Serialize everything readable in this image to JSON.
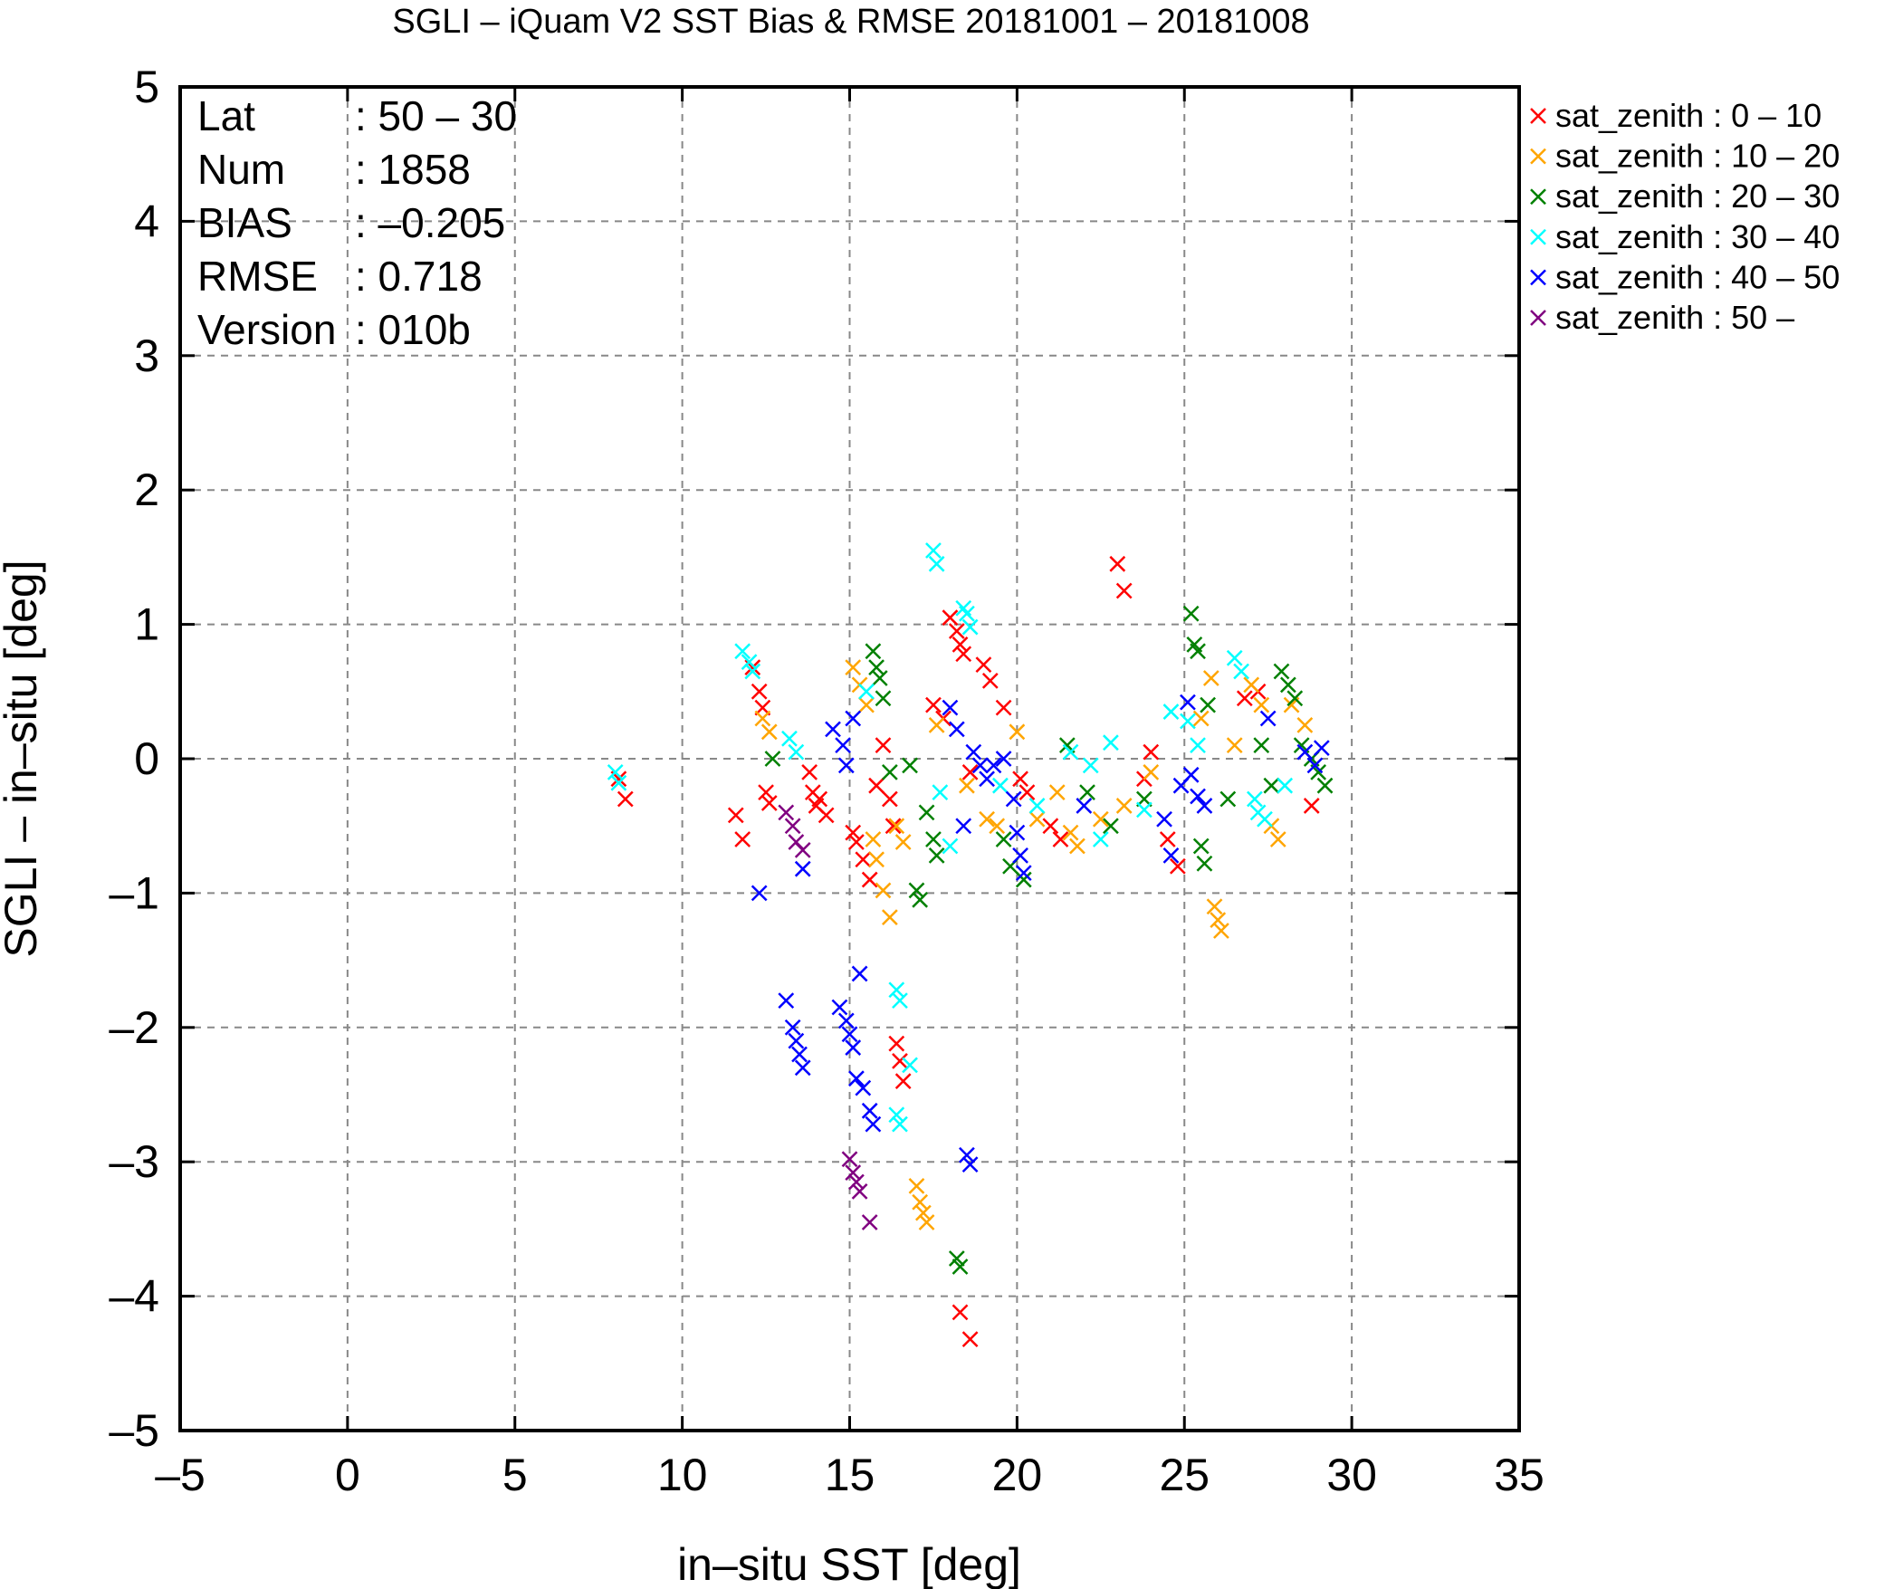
{
  "chart_data": {
    "type": "scatter",
    "title": "SGLI – iQuam V2 SST Bias & RMSE 20181001 – 20181008",
    "xlabel": "in–situ SST [deg]",
    "ylabel": "SGLI – in–situ [deg]",
    "xlim": [
      -5,
      35
    ],
    "ylim": [
      -5,
      5
    ],
    "xticks": [
      -5,
      0,
      5,
      10,
      15,
      20,
      25,
      30,
      35
    ],
    "yticks": [
      -5,
      -4,
      -3,
      -2,
      -1,
      0,
      1,
      2,
      3,
      4,
      5
    ],
    "xtick_labels": [
      "–5",
      "0",
      "5",
      "10",
      "15",
      "20",
      "25",
      "30",
      "35"
    ],
    "ytick_labels": [
      "–5",
      "–4",
      "–3",
      "–2",
      "–1",
      "0",
      "1",
      "2",
      "3",
      "4",
      "5"
    ],
    "grid": true,
    "legend_position": "outside top-right",
    "marker": "×",
    "stats": [
      {
        "key": "Lat",
        "value": ": 50 – 30"
      },
      {
        "key": "Num",
        "value": ": 1858"
      },
      {
        "key": "BIAS",
        "value": ": –0.205"
      },
      {
        "key": "RMSE",
        "value": ": 0.718"
      },
      {
        "key": "Version",
        "value": ": 010b"
      }
    ],
    "series": [
      {
        "name": "sat_zenith :  0 – 10",
        "color": "#ff0000",
        "points": [
          [
            8.1,
            -0.15
          ],
          [
            8.3,
            -0.3
          ],
          [
            11.6,
            -0.42
          ],
          [
            11.8,
            -0.6
          ],
          [
            12.1,
            0.68
          ],
          [
            12.3,
            0.5
          ],
          [
            12.4,
            0.38
          ],
          [
            12.5,
            -0.25
          ],
          [
            12.6,
            -0.33
          ],
          [
            13.8,
            -0.1
          ],
          [
            13.9,
            -0.25
          ],
          [
            14.0,
            -0.35
          ],
          [
            14.1,
            -0.3
          ],
          [
            14.3,
            -0.42
          ],
          [
            15.1,
            -0.55
          ],
          [
            15.2,
            -0.62
          ],
          [
            15.4,
            -0.75
          ],
          [
            15.6,
            -0.9
          ],
          [
            15.8,
            -0.2
          ],
          [
            16.0,
            0.1
          ],
          [
            16.2,
            -0.3
          ],
          [
            16.3,
            -0.5
          ],
          [
            16.4,
            -2.12
          ],
          [
            16.5,
            -2.25
          ],
          [
            16.6,
            -2.4
          ],
          [
            17.5,
            0.4
          ],
          [
            17.8,
            0.3
          ],
          [
            18.0,
            1.05
          ],
          [
            18.2,
            0.95
          ],
          [
            18.3,
            0.85
          ],
          [
            18.4,
            0.78
          ],
          [
            18.6,
            -0.1
          ],
          [
            19.0,
            0.7
          ],
          [
            19.2,
            0.58
          ],
          [
            19.6,
            0.38
          ],
          [
            20.1,
            -0.15
          ],
          [
            20.3,
            -0.25
          ],
          [
            21.0,
            -0.5
          ],
          [
            21.3,
            -0.6
          ],
          [
            23.0,
            1.45
          ],
          [
            23.2,
            1.25
          ],
          [
            23.8,
            -0.15
          ],
          [
            24.0,
            0.05
          ],
          [
            24.5,
            -0.6
          ],
          [
            24.8,
            -0.8
          ],
          [
            26.8,
            0.45
          ],
          [
            27.2,
            0.5
          ],
          [
            28.8,
            -0.35
          ],
          [
            18.3,
            -4.12
          ],
          [
            18.6,
            -4.32
          ]
        ]
      },
      {
        "name": "sat_zenith : 10 – 20",
        "color": "#ffa500",
        "points": [
          [
            12.4,
            0.3
          ],
          [
            12.6,
            0.2
          ],
          [
            15.1,
            0.68
          ],
          [
            15.3,
            0.55
          ],
          [
            15.5,
            0.4
          ],
          [
            15.7,
            -0.6
          ],
          [
            15.8,
            -0.75
          ],
          [
            16.0,
            -0.98
          ],
          [
            16.2,
            -1.18
          ],
          [
            16.4,
            -0.5
          ],
          [
            16.6,
            -0.62
          ],
          [
            17.0,
            -3.18
          ],
          [
            17.1,
            -3.3
          ],
          [
            17.2,
            -3.38
          ],
          [
            17.3,
            -3.45
          ],
          [
            17.6,
            0.25
          ],
          [
            18.5,
            -0.2
          ],
          [
            19.1,
            -0.45
          ],
          [
            19.4,
            -0.5
          ],
          [
            20.0,
            0.2
          ],
          [
            20.6,
            -0.45
          ],
          [
            21.2,
            -0.25
          ],
          [
            21.6,
            -0.55
          ],
          [
            21.8,
            -0.65
          ],
          [
            22.5,
            -0.45
          ],
          [
            23.2,
            -0.35
          ],
          [
            24.0,
            -0.1
          ],
          [
            25.5,
            0.3
          ],
          [
            25.8,
            0.6
          ],
          [
            25.9,
            -1.1
          ],
          [
            26.0,
            -1.2
          ],
          [
            26.1,
            -1.28
          ],
          [
            26.5,
            0.1
          ],
          [
            27.0,
            0.55
          ],
          [
            27.3,
            0.4
          ],
          [
            27.6,
            -0.5
          ],
          [
            27.8,
            -0.6
          ],
          [
            28.2,
            0.4
          ],
          [
            28.6,
            0.25
          ]
        ]
      },
      {
        "name": "sat_zenith : 20 – 30",
        "color": "#008000",
        "points": [
          [
            12.7,
            0.0
          ],
          [
            15.7,
            0.8
          ],
          [
            15.8,
            0.68
          ],
          [
            15.9,
            0.6
          ],
          [
            16.0,
            0.45
          ],
          [
            16.2,
            -0.1
          ],
          [
            16.8,
            -0.05
          ],
          [
            17.0,
            -0.98
          ],
          [
            17.1,
            -1.05
          ],
          [
            17.3,
            -0.4
          ],
          [
            17.5,
            -0.6
          ],
          [
            17.6,
            -0.72
          ],
          [
            18.2,
            -3.72
          ],
          [
            18.3,
            -3.78
          ],
          [
            19.6,
            -0.6
          ],
          [
            19.8,
            -0.8
          ],
          [
            20.2,
            -0.9
          ],
          [
            21.5,
            0.1
          ],
          [
            22.1,
            -0.25
          ],
          [
            22.8,
            -0.5
          ],
          [
            23.8,
            -0.3
          ],
          [
            25.2,
            1.08
          ],
          [
            25.3,
            0.85
          ],
          [
            25.4,
            0.8
          ],
          [
            25.5,
            -0.65
          ],
          [
            25.6,
            -0.78
          ],
          [
            25.7,
            0.4
          ],
          [
            26.3,
            -0.3
          ],
          [
            27.3,
            0.1
          ],
          [
            27.6,
            -0.2
          ],
          [
            27.9,
            0.65
          ],
          [
            28.1,
            0.55
          ],
          [
            28.3,
            0.45
          ],
          [
            28.5,
            0.1
          ],
          [
            28.8,
            0.0
          ],
          [
            29.0,
            -0.1
          ],
          [
            29.2,
            -0.2
          ]
        ]
      },
      {
        "name": "sat_zenith : 30 – 40",
        "color": "#00ffff",
        "points": [
          [
            8.0,
            -0.1
          ],
          [
            8.1,
            -0.18
          ],
          [
            11.8,
            0.8
          ],
          [
            12.0,
            0.72
          ],
          [
            12.1,
            0.65
          ],
          [
            13.2,
            0.15
          ],
          [
            13.4,
            0.05
          ],
          [
            15.5,
            0.5
          ],
          [
            16.4,
            -1.72
          ],
          [
            16.5,
            -1.8
          ],
          [
            16.4,
            -2.65
          ],
          [
            16.5,
            -2.72
          ],
          [
            16.8,
            -2.28
          ],
          [
            17.5,
            1.55
          ],
          [
            17.6,
            1.45
          ],
          [
            17.7,
            -0.25
          ],
          [
            18.0,
            -0.65
          ],
          [
            18.4,
            1.12
          ],
          [
            18.5,
            1.08
          ],
          [
            18.6,
            0.98
          ],
          [
            19.5,
            -0.2
          ],
          [
            20.6,
            -0.35
          ],
          [
            21.6,
            0.05
          ],
          [
            22.2,
            -0.05
          ],
          [
            22.5,
            -0.6
          ],
          [
            22.8,
            0.12
          ],
          [
            23.8,
            -0.38
          ],
          [
            24.6,
            0.35
          ],
          [
            25.1,
            0.28
          ],
          [
            25.4,
            0.1
          ],
          [
            26.5,
            0.75
          ],
          [
            26.7,
            0.65
          ],
          [
            27.1,
            -0.3
          ],
          [
            27.2,
            -0.4
          ],
          [
            27.4,
            -0.45
          ],
          [
            28.0,
            -0.2
          ]
        ]
      },
      {
        "name": "sat_zenith : 40 – 50",
        "color": "#0000ff",
        "points": [
          [
            12.3,
            -1.0
          ],
          [
            13.1,
            -1.8
          ],
          [
            13.3,
            -2.0
          ],
          [
            13.4,
            -2.1
          ],
          [
            13.5,
            -2.2
          ],
          [
            13.6,
            -2.3
          ],
          [
            13.6,
            -0.82
          ],
          [
            14.5,
            0.22
          ],
          [
            14.8,
            0.1
          ],
          [
            14.9,
            -0.05
          ],
          [
            14.7,
            -1.85
          ],
          [
            14.9,
            -1.95
          ],
          [
            15.0,
            -2.05
          ],
          [
            15.1,
            -2.15
          ],
          [
            15.1,
            0.3
          ],
          [
            15.2,
            -2.38
          ],
          [
            15.3,
            -1.6
          ],
          [
            15.4,
            -2.45
          ],
          [
            15.6,
            -2.62
          ],
          [
            15.7,
            -2.72
          ],
          [
            18.0,
            0.38
          ],
          [
            18.2,
            0.22
          ],
          [
            18.4,
            -0.5
          ],
          [
            18.5,
            -2.95
          ],
          [
            18.6,
            -3.02
          ],
          [
            18.7,
            0.05
          ],
          [
            18.9,
            -0.05
          ],
          [
            19.1,
            -0.15
          ],
          [
            19.3,
            -0.05
          ],
          [
            19.6,
            0.0
          ],
          [
            19.9,
            -0.3
          ],
          [
            20.0,
            -0.55
          ],
          [
            20.1,
            -0.72
          ],
          [
            20.2,
            -0.85
          ],
          [
            22.0,
            -0.35
          ],
          [
            24.4,
            -0.45
          ],
          [
            24.6,
            -0.72
          ],
          [
            24.9,
            -0.2
          ],
          [
            25.1,
            0.42
          ],
          [
            25.2,
            -0.12
          ],
          [
            25.4,
            -0.28
          ],
          [
            25.6,
            -0.35
          ],
          [
            27.5,
            0.3
          ],
          [
            28.6,
            0.05
          ],
          [
            28.9,
            -0.05
          ],
          [
            29.1,
            0.08
          ]
        ]
      },
      {
        "name": "sat_zenith : 50 –",
        "color": "#800080",
        "points": [
          [
            13.1,
            -0.4
          ],
          [
            13.3,
            -0.5
          ],
          [
            13.4,
            -0.62
          ],
          [
            13.6,
            -0.68
          ],
          [
            15.0,
            -2.98
          ],
          [
            15.1,
            -3.08
          ],
          [
            15.2,
            -3.15
          ],
          [
            15.3,
            -3.22
          ],
          [
            15.6,
            -3.45
          ]
        ]
      }
    ]
  }
}
